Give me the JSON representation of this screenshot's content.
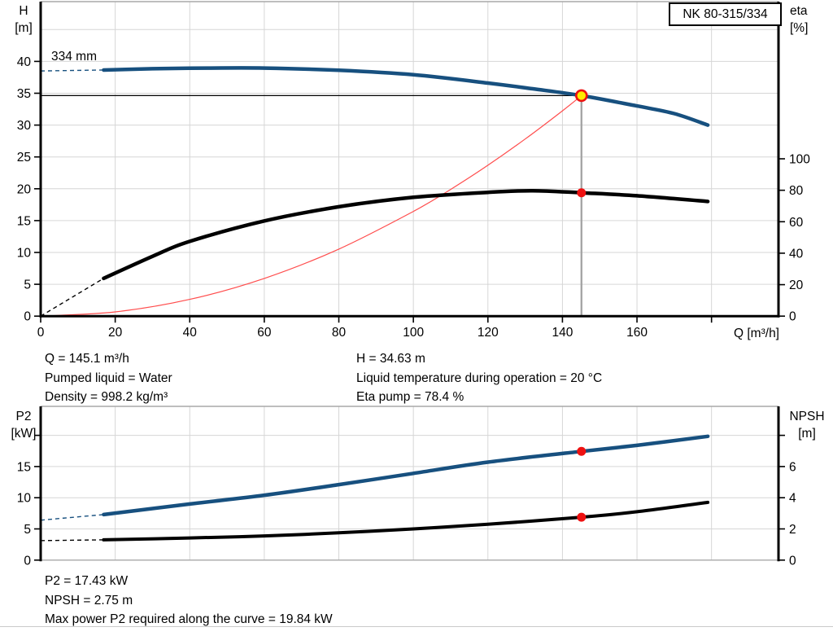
{
  "chart_data": [
    {
      "id": "head-efficiency-chart",
      "type": "line",
      "title": "NK 80-315/334",
      "impeller_diameter_label": "334 mm",
      "x_axis": {
        "label": "Q [m³/h]",
        "range": [
          0,
          198
        ],
        "tick_values": [
          0,
          20,
          40,
          60,
          80,
          100,
          120,
          140,
          160,
          180
        ],
        "tick_labels": [
          "0",
          "20",
          "40",
          "60",
          "80",
          "100",
          "120",
          "140",
          "160",
          ""
        ],
        "grid_values": [
          20,
          40,
          60,
          80,
          100,
          120,
          140,
          160,
          180
        ]
      },
      "y_axis_left": {
        "label": "H",
        "unit": "[m]",
        "range": [
          0,
          49.5
        ],
        "tick_values": [
          0,
          5,
          10,
          15,
          20,
          25,
          30,
          35,
          40
        ],
        "tick_labels": [
          "0",
          "5",
          "10",
          "15",
          "20",
          "25",
          "30",
          "35",
          "40"
        ],
        "grid_values": [
          5,
          10,
          15,
          20,
          25,
          30,
          35,
          40,
          45
        ]
      },
      "y_axis_right": {
        "label": "eta",
        "unit": "[%]",
        "range": [
          0,
          200
        ],
        "tick_values": [
          0,
          20,
          40,
          60,
          80,
          100
        ],
        "tick_labels": [
          "0",
          "20",
          "40",
          "60",
          "80",
          "100"
        ]
      },
      "series": [
        {
          "name": "system-curve",
          "axis": "left",
          "color": "#ff4d4d",
          "width": 1.2,
          "role": "system",
          "points": [
            [
              0,
              0
            ],
            [
              20,
              0.66
            ],
            [
              40,
              2.63
            ],
            [
              60,
              5.92
            ],
            [
              80,
              10.53
            ],
            [
              100,
              16.45
            ],
            [
              110,
              19.9
            ],
            [
              120,
              23.69
            ],
            [
              130,
              27.81
            ],
            [
              140,
              32.24
            ],
            [
              145.1,
              34.63
            ]
          ]
        },
        {
          "name": "head-curve-334mm",
          "axis": "left",
          "color": "#17507f",
          "width": 4.5,
          "dash_points": [
            [
              0,
              38.5
            ],
            [
              16.9,
              38.65
            ]
          ],
          "points": [
            [
              16.9,
              38.65
            ],
            [
              30,
              38.85
            ],
            [
              45,
              38.95
            ],
            [
              60,
              38.95
            ],
            [
              80,
              38.6
            ],
            [
              100,
              37.9
            ],
            [
              120,
              36.6
            ],
            [
              132,
              35.7
            ],
            [
              145.1,
              34.63
            ],
            [
              160,
              33.0
            ],
            [
              170,
              31.8
            ],
            [
              179,
              30.0
            ]
          ]
        },
        {
          "name": "efficiency-curve",
          "axis": "right",
          "color": "#000000",
          "width": 4.5,
          "dash_points": [
            [
              0,
              0
            ],
            [
              16.9,
              24
            ]
          ],
          "points": [
            [
              16.9,
              24
            ],
            [
              30,
              38
            ],
            [
              40,
              47.5
            ],
            [
              60,
              60.5
            ],
            [
              80,
              69.5
            ],
            [
              100,
              75.5
            ],
            [
              120,
              78.7
            ],
            [
              132,
              79.7
            ],
            [
              145.1,
              78.4
            ],
            [
              160,
              76.5
            ],
            [
              179,
              72.9
            ]
          ]
        }
      ],
      "duty_point": {
        "q": 145.1,
        "crosshair": true,
        "markers": [
          {
            "axis": "left",
            "value": 34.63,
            "style": "target"
          },
          {
            "axis": "right",
            "value": 78.4,
            "style": "dot"
          }
        ]
      }
    },
    {
      "id": "power-npsh-chart",
      "type": "line",
      "x_axis": {
        "label": "",
        "range": [
          0,
          198
        ],
        "tick_values": [],
        "tick_labels": [],
        "grid_values": [
          20,
          40,
          60,
          80,
          100,
          120,
          140,
          160,
          180
        ]
      },
      "y_axis_left": {
        "label": "P2",
        "unit": "[kW]",
        "range": [
          0,
          24.6
        ],
        "tick_values": [
          0,
          5,
          10,
          15,
          20
        ],
        "tick_labels": [
          "0",
          "5",
          "10",
          "15",
          ""
        ],
        "grid_values": [
          5,
          10,
          15,
          20
        ]
      },
      "y_axis_right": {
        "label": "NPSH",
        "unit": "[m]",
        "range": [
          0,
          9.85
        ],
        "tick_values": [
          0,
          2,
          4,
          6,
          8
        ],
        "tick_labels": [
          "0",
          "2",
          "4",
          "6",
          ""
        ]
      },
      "series": [
        {
          "name": "p2-curve",
          "axis": "left",
          "color": "#17507f",
          "width": 4.5,
          "dash_points": [
            [
              0,
              6.4
            ],
            [
              16.9,
              7.3
            ]
          ],
          "points": [
            [
              16.9,
              7.3
            ],
            [
              40,
              9.0
            ],
            [
              60,
              10.4
            ],
            [
              80,
              12.1
            ],
            [
              100,
              13.9
            ],
            [
              120,
              15.7
            ],
            [
              145.1,
              17.43
            ],
            [
              160,
              18.4
            ],
            [
              179,
              19.84
            ]
          ]
        },
        {
          "name": "npsh-curve",
          "axis": "right",
          "color": "#000000",
          "width": 4,
          "dash_points": [
            [
              0,
              1.25
            ],
            [
              16.9,
              1.3
            ]
          ],
          "points": [
            [
              16.9,
              1.3
            ],
            [
              40,
              1.42
            ],
            [
              60,
              1.55
            ],
            [
              80,
              1.75
            ],
            [
              100,
              2.0
            ],
            [
              120,
              2.3
            ],
            [
              145.1,
              2.75
            ],
            [
              160,
              3.1
            ],
            [
              179,
              3.7
            ]
          ]
        }
      ],
      "duty_point": {
        "q": 145.1,
        "crosshair": false,
        "markers": [
          {
            "axis": "left",
            "value": 17.43,
            "style": "dot"
          },
          {
            "axis": "right",
            "value": 2.75,
            "style": "dot"
          }
        ]
      }
    }
  ],
  "operating_data": {
    "left": [
      "Q = 145.1 m³/h",
      "Pumped liquid = Water",
      "Density = 998.2 kg/m³"
    ],
    "right": [
      "H = 34.63 m",
      "Liquid temperature during operation = 20 °C",
      "Eta pump = 78.4 %"
    ]
  },
  "power_data": [
    "P2 = 17.43 kW",
    "NPSH = 2.75 m",
    "Max power P2 required along the curve = 19.84 kW"
  ],
  "colors": {
    "curve_blue": "#17507f",
    "curve_black": "#000000",
    "system_red": "#ff4d4d",
    "duty_target_fill": "#ffeb00",
    "duty_dot_red": "#ee1111",
    "grid": "#d6d6d6",
    "frame_gray": "#a8a8a8",
    "duty_line_gray": "#a3a3a3"
  }
}
